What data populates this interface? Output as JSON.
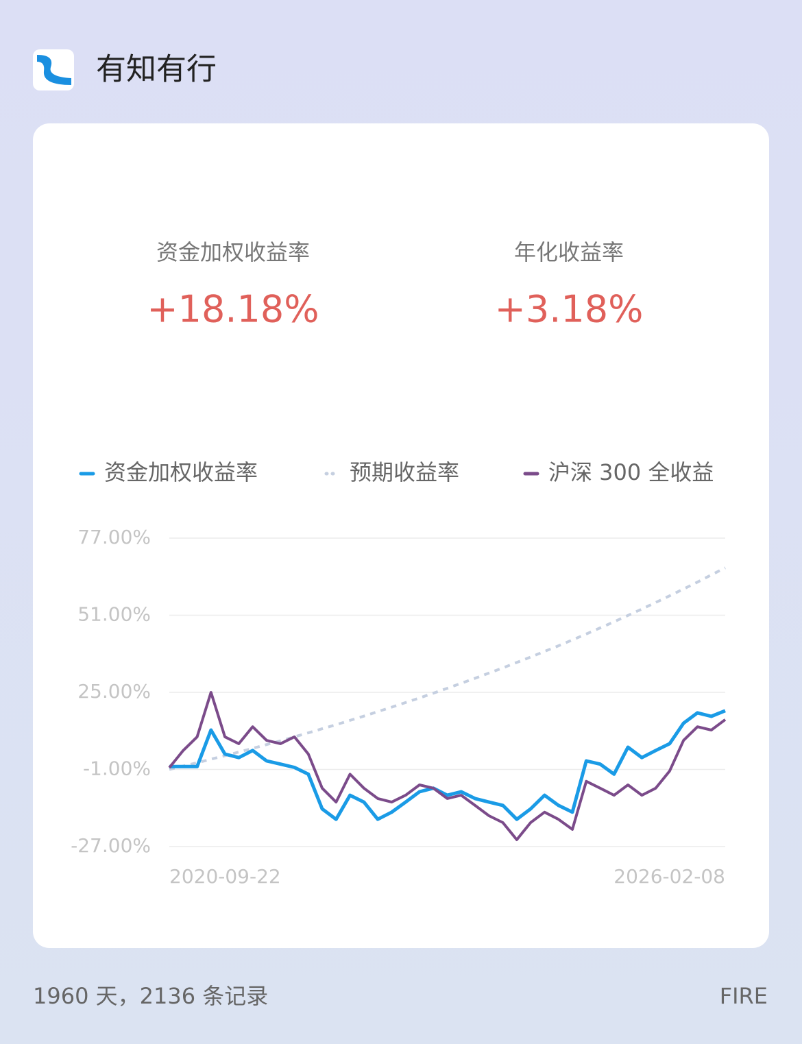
{
  "header": {
    "app_name": "有知有行"
  },
  "summary": [
    {
      "label": "资金加权收益率",
      "value": "+18.18%"
    },
    {
      "label": "年化收益率",
      "value": "+3.18%"
    }
  ],
  "chart_data": {
    "type": "line",
    "categories": [
      "2020-09-22",
      null,
      null,
      null,
      null,
      null,
      null,
      null,
      null,
      null,
      null,
      null,
      null,
      null,
      null,
      null,
      null,
      null,
      null,
      null,
      null,
      null,
      null,
      null,
      null,
      null,
      null,
      null,
      null,
      null,
      null,
      null,
      null,
      null,
      null,
      null,
      null,
      null,
      null,
      null,
      "2026-02-08"
    ],
    "series": [
      {
        "name": "资金加权收益率",
        "color": "#1a9be6",
        "style": "solid",
        "values": [
          0,
          0,
          0,
          12.3,
          4.2,
          3,
          5.4,
          1.9,
          0.8,
          -0.3,
          -2.6,
          -14.3,
          -17.8,
          -9.7,
          -12,
          -17.8,
          -15.4,
          -12,
          -8.5,
          -7.3,
          -9.7,
          -8.5,
          -10.8,
          -12,
          -13.1,
          -17.8,
          -14.3,
          -9.7,
          -13.1,
          -15.4,
          1.9,
          0.8,
          -2.6,
          6.5,
          3,
          5.4,
          7.7,
          14.6,
          18.1,
          16.9,
          18.8
        ]
      },
      {
        "name": "预期收益率",
        "color": "#c5cfe0",
        "style": "dotted",
        "values": [
          -1,
          0.14,
          1.27,
          2.46,
          3.64,
          4.87,
          6.1,
          7.38,
          8.66,
          10,
          11.33,
          12.72,
          14.1,
          15.55,
          16.99,
          18.5,
          20,
          21.55,
          23.1,
          24.73,
          26.36,
          28.05,
          29.74,
          31.5,
          33.26,
          35.08,
          36.9,
          38.8,
          40.7,
          42.69,
          44.67,
          46.73,
          48.78,
          50.93,
          53.07,
          55.3,
          57.53,
          59.85,
          62.17,
          64.59,
          67
        ]
      },
      {
        "name": "沪深 300 全收益",
        "color": "#7b4b8a",
        "style": "solid",
        "values": [
          -0.4,
          5.4,
          10,
          25,
          10,
          7.7,
          13.4,
          8.8,
          7.7,
          10,
          4.2,
          -7.3,
          -12,
          -2.6,
          -7.3,
          -10.8,
          -12,
          -9.7,
          -6.2,
          -7.3,
          -10.8,
          -9.7,
          -13.1,
          -16.6,
          -18.9,
          -24.7,
          -18.9,
          -15.4,
          -17.8,
          -21.2,
          -5,
          -7.3,
          -9.7,
          -6.2,
          -9.7,
          -7.3,
          -1.5,
          8.8,
          13.4,
          12.3,
          15.8
        ]
      }
    ],
    "ylim": [
      -27,
      77
    ],
    "yticks": [
      {
        "value": 77,
        "label": "77.00%"
      },
      {
        "value": 51,
        "label": "51.00%"
      },
      {
        "value": 25,
        "label": "25.00%"
      },
      {
        "value": -1,
        "label": "-1.00%"
      },
      {
        "value": -27,
        "label": "-27.00%"
      }
    ],
    "grid": true
  },
  "footer": {
    "stats": "1960 天，2136 条记录",
    "tag": "FIRE"
  }
}
